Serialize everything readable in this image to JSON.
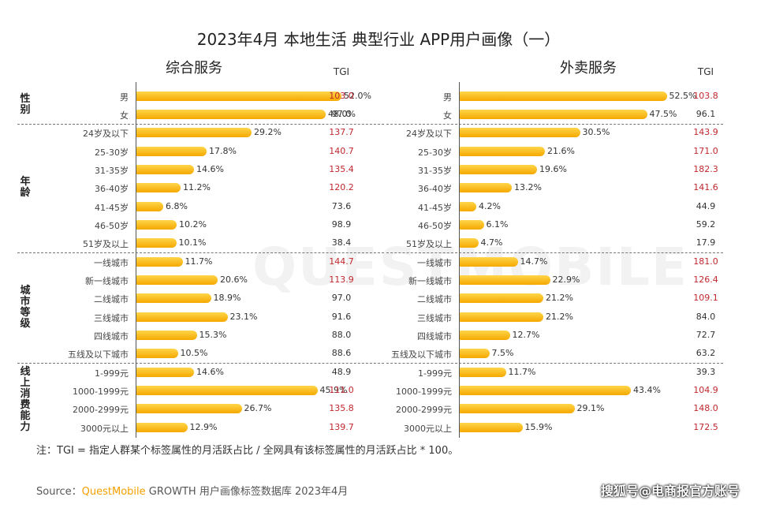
{
  "title": "2023年4月  本地生活 典型行业 APP用户画像（一）",
  "watermark_text": "QUESTMOBILE",
  "tgi_header": "TGI",
  "note": "注：TGI = 指定人群某个标签属性的月活跃占比 / 全网具有该标签属性的月活跃占比 * 100。",
  "source": {
    "label": "Source：",
    "brand": "QuestMobile",
    "rest": " GROWTH 用户画像标签数据库 2023年4月"
  },
  "corner_watermark": "搜狐号@电商报官方账号",
  "colors": {
    "bar": "#f5a800",
    "tgi_high": "#c0272d"
  },
  "chart_data": {
    "type": "bar",
    "orientation": "horizontal",
    "unit": "%",
    "sections": [
      {
        "name": "性别",
        "categories": [
          "男",
          "女"
        ]
      },
      {
        "name": "年龄",
        "categories": [
          "24岁及以下",
          "25-30岁",
          "31-35岁",
          "36-40岁",
          "41-45岁",
          "46-50岁",
          "51岁及以上"
        ]
      },
      {
        "name": "城市等级",
        "categories": [
          "一线城市",
          "新一线城市",
          "二线城市",
          "三线城市",
          "四线城市",
          "五线及以下城市"
        ]
      },
      {
        "name": "线上消费能力",
        "categories": [
          "1-999元",
          "1000-1999元",
          "2000-2999元",
          "3000元以上"
        ]
      }
    ],
    "series": [
      {
        "name": "综合服务",
        "values": [
          52.0,
          48.0,
          29.2,
          17.8,
          14.6,
          11.2,
          6.8,
          10.2,
          10.1,
          11.7,
          20.6,
          18.9,
          23.1,
          15.3,
          10.5,
          14.6,
          45.9,
          26.7,
          12.9
        ],
        "labels": [
          "52.0%",
          "48.0%",
          "29.2%",
          "17.8%",
          "14.6%",
          "11.2%",
          "6.8%",
          "10.2%",
          "10.1%",
          "11.7%",
          "20.6%",
          "18.9%",
          "23.1%",
          "15.3%",
          "10.5%",
          "14.6%",
          "45.9%",
          "26.7%",
          "12.9%"
        ],
        "tgi": [
          "103.0",
          "97.0",
          "137.7",
          "140.7",
          "135.4",
          "120.2",
          "73.6",
          "98.9",
          "38.4",
          "144.7",
          "113.9",
          "97.0",
          "91.6",
          "88.0",
          "88.6",
          "48.9",
          "111.0",
          "135.8",
          "139.7"
        ]
      },
      {
        "name": "外卖服务",
        "values": [
          52.5,
          47.5,
          30.5,
          21.6,
          19.6,
          13.2,
          4.2,
          6.1,
          4.7,
          14.7,
          22.9,
          21.2,
          21.2,
          12.7,
          7.5,
          11.7,
          43.4,
          29.1,
          15.9
        ],
        "labels": [
          "52.5%",
          "47.5%",
          "30.5%",
          "21.6%",
          "19.6%",
          "13.2%",
          "4.2%",
          "6.1%",
          "4.7%",
          "14.7%",
          "22.9%",
          "21.2%",
          "21.2%",
          "12.7%",
          "7.5%",
          "11.7%",
          "43.4%",
          "29.1%",
          "15.9%"
        ],
        "tgi": [
          "103.8",
          "96.1",
          "143.9",
          "171.0",
          "182.3",
          "141.6",
          "44.9",
          "59.2",
          "17.9",
          "181.0",
          "126.4",
          "109.1",
          "84.0",
          "72.7",
          "63.2",
          "39.3",
          "104.9",
          "148.0",
          "172.5"
        ]
      }
    ]
  }
}
